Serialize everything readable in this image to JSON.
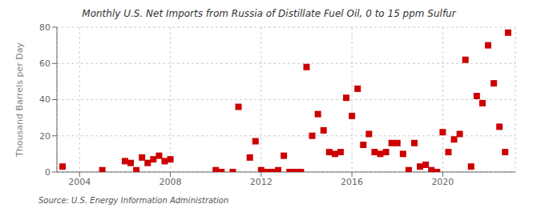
{
  "chart_data": {
    "type": "scatter",
    "title": "Monthly U.S. Net Imports from Russia of Distillate Fuel Oil, 0 to 15 ppm Sulfur",
    "y_label": "Thousand Barrels per Day",
    "annotations": [
      "Source: U.S. Energy Information Administration"
    ],
    "color": "#cc0000",
    "marker": "square",
    "grid": true,
    "xlim": [
      2003.0,
      2023.2
    ],
    "xticks": [
      2004,
      2008,
      2012,
      2016,
      2020
    ],
    "ylim": [
      0,
      80
    ],
    "yticks": [
      0,
      20,
      40,
      60,
      80
    ],
    "x": [
      2003.25,
      2005.0,
      2006.0,
      2006.25,
      2006.5,
      2006.75,
      2007.0,
      2007.25,
      2007.5,
      2007.75,
      2008.0,
      2010.0,
      2010.25,
      2010.75,
      2011.0,
      2011.5,
      2011.75,
      2012.0,
      2012.25,
      2012.5,
      2012.75,
      2013.0,
      2013.25,
      2013.5,
      2013.75,
      2014.0,
      2014.25,
      2014.5,
      2014.75,
      2015.0,
      2015.25,
      2015.5,
      2015.75,
      2016.0,
      2016.25,
      2016.5,
      2016.75,
      2017.0,
      2017.25,
      2017.5,
      2017.75,
      2018.0,
      2018.25,
      2018.5,
      2018.75,
      2019.0,
      2019.25,
      2019.5,
      2019.75,
      2020.0,
      2020.25,
      2020.5,
      2020.75,
      2021.0,
      2021.25,
      2021.5,
      2021.75,
      2022.0,
      2022.25,
      2022.5,
      2022.75,
      2022.88
    ],
    "values": [
      3,
      1,
      6,
      5,
      1,
      8,
      5,
      7,
      9,
      6,
      7,
      1,
      0,
      0,
      36,
      8,
      17,
      1,
      0,
      0,
      1,
      9,
      0,
      0,
      0,
      58,
      20,
      32,
      23,
      11,
      10,
      11,
      41,
      31,
      46,
      15,
      21,
      11,
      10,
      11,
      16,
      16,
      10,
      1,
      16,
      3,
      4,
      1,
      0,
      22,
      11,
      18,
      21,
      62,
      3,
      42,
      38,
      70,
      49,
      25,
      11,
      77
    ]
  }
}
